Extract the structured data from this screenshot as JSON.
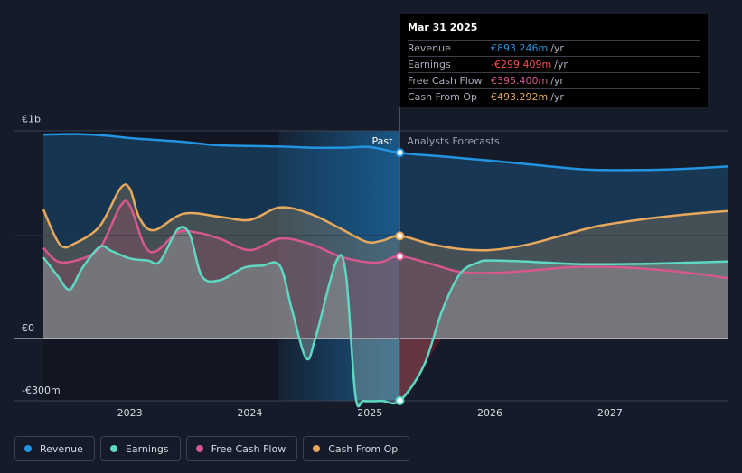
{
  "tooltip": {
    "date": "Mar 31 2025",
    "rows": [
      {
        "label": "Revenue",
        "value": "€893.246m",
        "unit": "/yr",
        "color": "#2394df"
      },
      {
        "label": "Earnings",
        "value": "-€299.409m",
        "unit": "/yr",
        "color": "#ff4d4f"
      },
      {
        "label": "Free Cash Flow",
        "value": "€395.400m",
        "unit": "/yr",
        "color": "#d6588f"
      },
      {
        "label": "Cash From Op",
        "value": "€493.292m",
        "unit": "/yr",
        "color": "#e8a95c"
      }
    ]
  },
  "legend": [
    {
      "label": "Revenue",
      "color": "#2394df"
    },
    {
      "label": "Earnings",
      "color": "#5ed8c3"
    },
    {
      "label": "Free Cash Flow",
      "color": "#d6588f"
    },
    {
      "label": "Cash From Op",
      "color": "#e8a95c"
    }
  ],
  "chart_data": {
    "type": "line",
    "title": "",
    "xlabel": "",
    "ylabel": "",
    "currency": "€",
    "x_ticks": [
      "2023",
      "2024",
      "2025",
      "2026",
      "2027"
    ],
    "y_ticks": [
      {
        "value": 1000,
        "label": "€1b"
      },
      {
        "value": 0,
        "label": "€0"
      },
      {
        "value": -300,
        "label": "-€300m"
      }
    ],
    "ylim": [
      -300,
      1000
    ],
    "xlim": [
      2022.28,
      2027.98
    ],
    "divider_x": 2025.25,
    "past_label": "Past",
    "forecast_label": "Analysts Forecasts",
    "series": [
      {
        "name": "Revenue",
        "color": "#2394df",
        "points": [
          [
            2022.28,
            980
          ],
          [
            2022.55,
            982
          ],
          [
            2022.8,
            975
          ],
          [
            2023.0,
            963
          ],
          [
            2023.2,
            955
          ],
          [
            2023.45,
            945
          ],
          [
            2023.7,
            930
          ],
          [
            2024.0,
            925
          ],
          [
            2024.3,
            922
          ],
          [
            2024.5,
            917
          ],
          [
            2024.8,
            917
          ],
          [
            2025.0,
            920
          ],
          [
            2025.25,
            893
          ],
          [
            2025.6,
            875
          ],
          [
            2026.0,
            855
          ],
          [
            2026.4,
            833
          ],
          [
            2026.8,
            812
          ],
          [
            2027.2,
            810
          ],
          [
            2027.6,
            815
          ],
          [
            2027.98,
            827
          ]
        ],
        "marker_x": 2025.25
      },
      {
        "name": "Cash From Op",
        "color": "#e8a95c",
        "points": [
          [
            2022.28,
            620
          ],
          [
            2022.42,
            450
          ],
          [
            2022.55,
            460
          ],
          [
            2022.75,
            540
          ],
          [
            2022.92,
            720
          ],
          [
            2023.0,
            720
          ],
          [
            2023.08,
            580
          ],
          [
            2023.2,
            520
          ],
          [
            2023.45,
            600
          ],
          [
            2023.75,
            585
          ],
          [
            2024.0,
            570
          ],
          [
            2024.25,
            630
          ],
          [
            2024.5,
            600
          ],
          [
            2024.75,
            530
          ],
          [
            2024.97,
            465
          ],
          [
            2025.1,
            470
          ],
          [
            2025.25,
            493
          ],
          [
            2025.5,
            455
          ],
          [
            2025.75,
            430
          ],
          [
            2026.0,
            425
          ],
          [
            2026.3,
            450
          ],
          [
            2026.6,
            495
          ],
          [
            2026.9,
            540
          ],
          [
            2027.3,
            575
          ],
          [
            2027.7,
            600
          ],
          [
            2027.98,
            613
          ]
        ],
        "marker_x": 2025.25
      },
      {
        "name": "Free Cash Flow",
        "color": "#d6588f",
        "points": [
          [
            2022.28,
            435
          ],
          [
            2022.4,
            370
          ],
          [
            2022.55,
            375
          ],
          [
            2022.75,
            435
          ],
          [
            2022.92,
            635
          ],
          [
            2023.0,
            640
          ],
          [
            2023.12,
            450
          ],
          [
            2023.22,
            420
          ],
          [
            2023.4,
            510
          ],
          [
            2023.55,
            510
          ],
          [
            2023.75,
            480
          ],
          [
            2024.0,
            425
          ],
          [
            2024.25,
            480
          ],
          [
            2024.5,
            455
          ],
          [
            2024.75,
            395
          ],
          [
            2024.97,
            367
          ],
          [
            2025.1,
            368
          ],
          [
            2025.25,
            395
          ],
          [
            2025.5,
            360
          ],
          [
            2025.75,
            320
          ],
          [
            2026.0,
            315
          ],
          [
            2026.3,
            325
          ],
          [
            2026.6,
            340
          ],
          [
            2026.8,
            345
          ],
          [
            2027.1,
            342
          ],
          [
            2027.4,
            330
          ],
          [
            2027.7,
            313
          ],
          [
            2027.98,
            290
          ]
        ],
        "marker_x": 2025.25
      },
      {
        "name": "Earnings",
        "color": "#5ed8c3",
        "points": [
          [
            2022.28,
            390
          ],
          [
            2022.4,
            300
          ],
          [
            2022.5,
            235
          ],
          [
            2022.6,
            335
          ],
          [
            2022.75,
            440
          ],
          [
            2022.85,
            420
          ],
          [
            2023.0,
            385
          ],
          [
            2023.15,
            375
          ],
          [
            2023.25,
            370
          ],
          [
            2023.4,
            525
          ],
          [
            2023.5,
            500
          ],
          [
            2023.6,
            300
          ],
          [
            2023.75,
            280
          ],
          [
            2023.95,
            340
          ],
          [
            2024.1,
            350
          ],
          [
            2024.25,
            350
          ],
          [
            2024.35,
            140
          ],
          [
            2024.47,
            -95
          ],
          [
            2024.55,
            10
          ],
          [
            2024.72,
            370
          ],
          [
            2024.8,
            310
          ],
          [
            2024.88,
            -275
          ],
          [
            2024.95,
            -300
          ],
          [
            2025.1,
            -300
          ],
          [
            2025.25,
            -299
          ],
          [
            2025.45,
            -130
          ],
          [
            2025.6,
            130
          ],
          [
            2025.75,
            310
          ],
          [
            2025.9,
            365
          ],
          [
            2026.0,
            375
          ],
          [
            2026.3,
            370
          ],
          [
            2026.7,
            358
          ],
          [
            2027.0,
            357
          ],
          [
            2027.4,
            360
          ],
          [
            2027.98,
            370
          ]
        ],
        "marker_x": 2025.25
      }
    ]
  }
}
